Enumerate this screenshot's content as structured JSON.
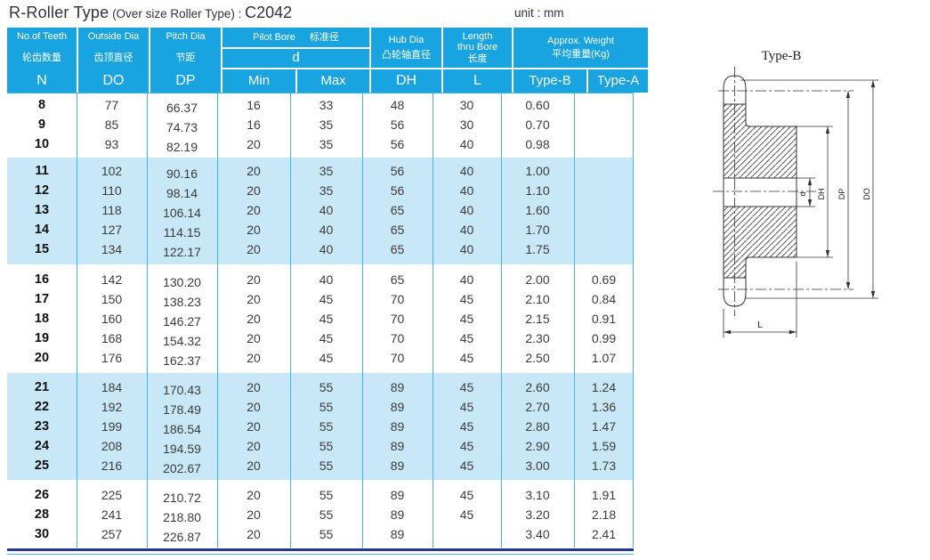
{
  "title": {
    "main": "R-Roller Type",
    "sub": " (Over size Roller Type) : ",
    "model": "C2042",
    "unit": "unit : mm"
  },
  "colors": {
    "header_blue": "#18a4e0",
    "band_blue": "#c8e8f8",
    "grid_cyan": "#3fb6e8",
    "bottom_dark_blue": "#283891",
    "body_text": "#3c3c3c"
  },
  "table": {
    "col_keys": [
      "n",
      "do",
      "dp",
      "min",
      "max",
      "dh",
      "l",
      "type_b",
      "type_a"
    ],
    "headers": {
      "teeth": {
        "en": "No.of Teeth",
        "cn": "轮齿数量",
        "sym": "N"
      },
      "outside": {
        "en": "Outside Dia",
        "cn": "齿顶直径",
        "sym": "DO"
      },
      "pitch": {
        "en": "Pitch Dia",
        "cn": "节距",
        "sym": "DP"
      },
      "pilot": {
        "en": "Pilot Bore",
        "cn": "标准径",
        "d": "d",
        "min": "Min",
        "max": "Max"
      },
      "hub": {
        "en": "Hub Dia",
        "cn": "凸轮轴直径",
        "sym": "DH"
      },
      "length": {
        "en1": "Length",
        "en2": "thru Bore",
        "cn": "长度",
        "sym": "L"
      },
      "weight": {
        "en": "Approx. Weight",
        "cn": "平均重量(Kg)",
        "type_b": "Type-B",
        "type_a": "Type-A"
      }
    },
    "groups": [
      {
        "shaded": false,
        "rows": [
          [
            "8",
            "77",
            "66.37",
            "16",
            "33",
            "48",
            "30",
            "0.60",
            ""
          ],
          [
            "9",
            "85",
            "74.73",
            "16",
            "35",
            "56",
            "30",
            "0.70",
            ""
          ],
          [
            "10",
            "93",
            "82.19",
            "20",
            "35",
            "56",
            "40",
            "0.98",
            ""
          ]
        ]
      },
      {
        "shaded": true,
        "rows": [
          [
            "11",
            "102",
            "90.16",
            "20",
            "35",
            "56",
            "40",
            "1.00",
            ""
          ],
          [
            "12",
            "110",
            "98.14",
            "20",
            "35",
            "56",
            "40",
            "1.10",
            ""
          ],
          [
            "13",
            "118",
            "106.14",
            "20",
            "40",
            "65",
            "40",
            "1.60",
            ""
          ],
          [
            "14",
            "127",
            "114.15",
            "20",
            "40",
            "65",
            "40",
            "1.70",
            ""
          ],
          [
            "15",
            "134",
            "122.17",
            "20",
            "40",
            "65",
            "40",
            "1.75",
            ""
          ]
        ]
      },
      {
        "shaded": false,
        "rows": [
          [
            "16",
            "142",
            "130.20",
            "20",
            "40",
            "65",
            "40",
            "2.00",
            "0.69"
          ],
          [
            "17",
            "150",
            "138.23",
            "20",
            "45",
            "70",
            "45",
            "2.10",
            "0.84"
          ],
          [
            "18",
            "160",
            "146.27",
            "20",
            "45",
            "70",
            "45",
            "2.15",
            "0.91"
          ],
          [
            "19",
            "168",
            "154.32",
            "20",
            "45",
            "70",
            "45",
            "2.30",
            "0.99"
          ],
          [
            "20",
            "176",
            "162.37",
            "20",
            "45",
            "70",
            "45",
            "2.50",
            "1.07"
          ]
        ]
      },
      {
        "shaded": true,
        "rows": [
          [
            "21",
            "184",
            "170.43",
            "20",
            "55",
            "89",
            "45",
            "2.60",
            "1.24"
          ],
          [
            "22",
            "192",
            "178.49",
            "20",
            "55",
            "89",
            "45",
            "2.70",
            "1.36"
          ],
          [
            "23",
            "199",
            "186.54",
            "20",
            "55",
            "89",
            "45",
            "2.80",
            "1.47"
          ],
          [
            "24",
            "208",
            "194.59",
            "20",
            "55",
            "89",
            "45",
            "2.90",
            "1.59"
          ],
          [
            "25",
            "216",
            "202.67",
            "20",
            "55",
            "89",
            "45",
            "3.00",
            "1.73"
          ]
        ]
      },
      {
        "shaded": false,
        "rows": [
          [
            "26",
            "225",
            "210.72",
            "20",
            "55",
            "89",
            "45",
            "3.10",
            "1.91"
          ],
          [
            "28",
            "241",
            "218.80",
            "20",
            "55",
            "89",
            "45",
            "3.20",
            "2.18"
          ],
          [
            "30",
            "257",
            "226.87",
            "20",
            "55",
            "89",
            "",
            "3.40",
            "2.41"
          ]
        ]
      }
    ]
  },
  "drawing": {
    "caption": "Type-B",
    "labels": {
      "d": "d",
      "dh": "DH",
      "dp": "DP",
      "do": "DO",
      "l": "L"
    }
  }
}
